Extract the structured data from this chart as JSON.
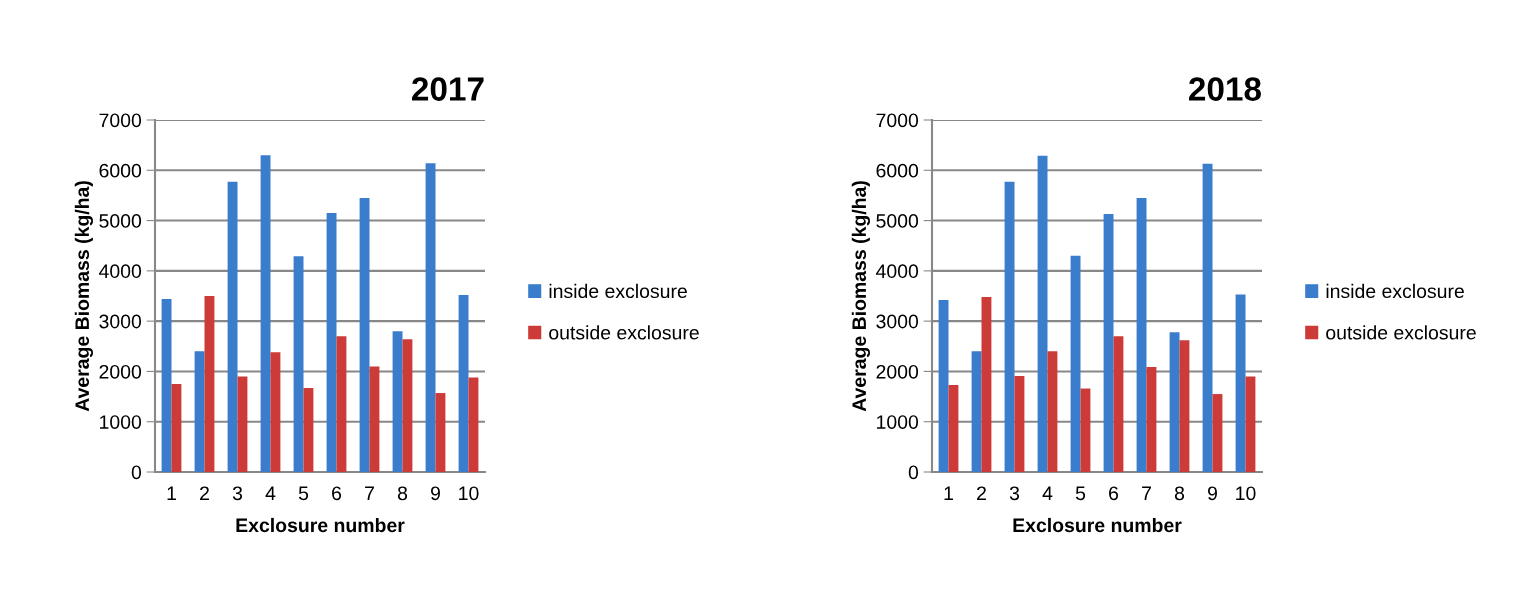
{
  "chart_data": [
    {
      "type": "bar",
      "title": "2017",
      "xlabel": "Exclosure number",
      "ylabel": "Average Biomass (kg/ha)",
      "categories": [
        "1",
        "2",
        "3",
        "4",
        "5",
        "6",
        "7",
        "8",
        "9",
        "10"
      ],
      "series": [
        {
          "name": "inside exclosure",
          "color": "#3a7dcc",
          "values": [
            3440,
            2400,
            5770,
            6300,
            4290,
            5150,
            5450,
            2800,
            6140,
            3520
          ]
        },
        {
          "name": "outside exclosure",
          "color": "#cc3b37",
          "values": [
            1750,
            3500,
            1900,
            2380,
            1670,
            2700,
            2100,
            2640,
            1570,
            1880
          ]
        }
      ],
      "ylim": [
        0,
        7000
      ],
      "yticks": [
        0,
        1000,
        2000,
        3000,
        4000,
        5000,
        6000,
        7000
      ],
      "grid": "y",
      "legend": "right"
    },
    {
      "type": "bar",
      "title": "2018",
      "xlabel": "Exclosure number",
      "ylabel": "Average Biomass (kg/ha)",
      "categories": [
        "1",
        "2",
        "3",
        "4",
        "5",
        "6",
        "7",
        "8",
        "9",
        "10"
      ],
      "series": [
        {
          "name": "inside exclosure",
          "color": "#3a7dcc",
          "values": [
            3420,
            2400,
            5770,
            6290,
            4300,
            5130,
            5450,
            2780,
            6130,
            3530
          ]
        },
        {
          "name": "outside exclosure",
          "color": "#cc3b37",
          "values": [
            1730,
            3480,
            1910,
            2400,
            1660,
            2700,
            2090,
            2620,
            1550,
            1900
          ]
        }
      ],
      "ylim": [
        0,
        7000
      ],
      "yticks": [
        0,
        1000,
        2000,
        3000,
        4000,
        5000,
        6000,
        7000
      ],
      "grid": "y",
      "legend": "right"
    }
  ]
}
